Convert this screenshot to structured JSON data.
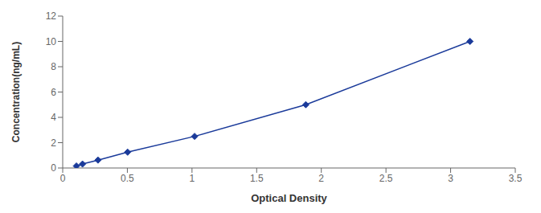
{
  "chart_data": {
    "type": "line",
    "x": [
      0.106,
      0.153,
      0.273,
      0.502,
      1.02,
      1.88,
      3.15
    ],
    "values": [
      0.156,
      0.312,
      0.625,
      1.25,
      2.5,
      5.0,
      10.0
    ],
    "color": "#1a3a9a",
    "marker": "diamond",
    "xlabel": "Optical Density",
    "ylabel": "Concentration(ng/mL)",
    "xlim": [
      0,
      3.5
    ],
    "ylim": [
      0,
      12
    ],
    "xticks": [
      0,
      0.5,
      1,
      1.5,
      2,
      2.5,
      3,
      3.5
    ],
    "yticks": [
      0,
      2,
      4,
      6,
      8,
      10,
      12
    ],
    "grid": false
  }
}
